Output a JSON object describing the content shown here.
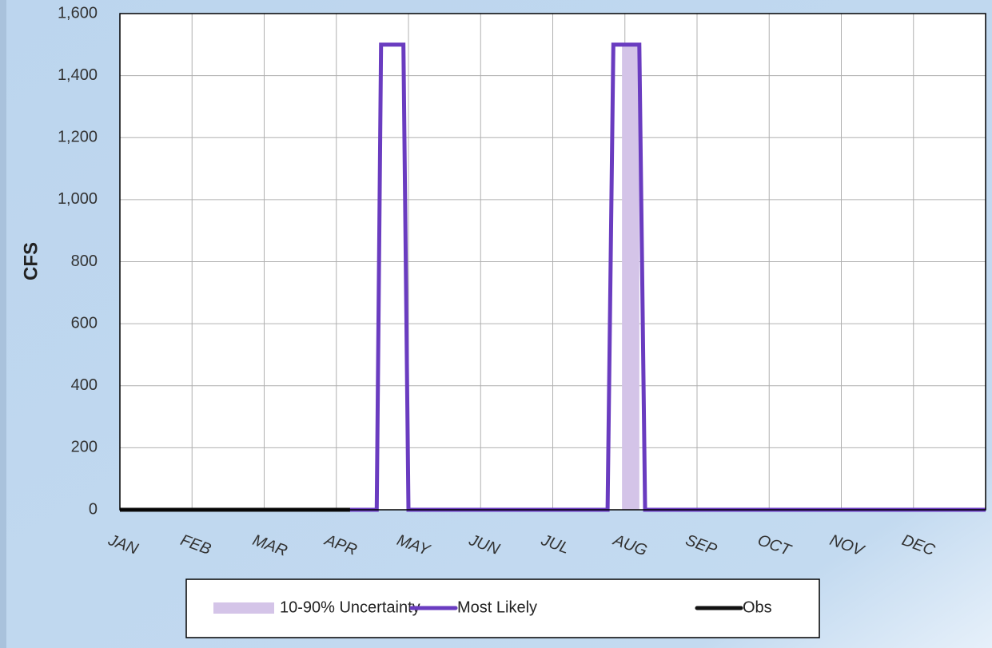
{
  "chart_data": {
    "type": "line",
    "y_label": "CFS",
    "xlim": [
      0,
      12
    ],
    "xticks": [
      {
        "value": 0,
        "label": "JAN"
      },
      {
        "value": 1,
        "label": "FEB"
      },
      {
        "value": 2,
        "label": "MAR"
      },
      {
        "value": 3,
        "label": "APR"
      },
      {
        "value": 4,
        "label": "MAY"
      },
      {
        "value": 5,
        "label": "JUN"
      },
      {
        "value": 6,
        "label": "JUL"
      },
      {
        "value": 7,
        "label": "AUG"
      },
      {
        "value": 8,
        "label": "SEP"
      },
      {
        "value": 9,
        "label": "OCT"
      },
      {
        "value": 10,
        "label": "NOV"
      },
      {
        "value": 11,
        "label": "DEC"
      }
    ],
    "ylim": [
      0,
      1600
    ],
    "yticks": [
      0,
      200,
      400,
      600,
      800,
      {
        "value": 1000,
        "label": "1,000"
      },
      {
        "value": 1200,
        "label": "1,200"
      },
      {
        "value": 1400,
        "label": "1,400"
      },
      {
        "value": 1600,
        "label": "1,600"
      }
    ],
    "grid": true,
    "legend": "bottom",
    "series": [
      {
        "name": "10-90% Uncertainty",
        "kind": "band",
        "color": "#d4c4e8",
        "x": [
          6.96,
          7.2
        ],
        "values": [
          1500,
          1500
        ],
        "lower": [
          0,
          0
        ]
      },
      {
        "name": "Most Likely",
        "kind": "line",
        "color": "#6a3cc0",
        "x": [
          0,
          3.56,
          3.62,
          3.93,
          4.0,
          6.76,
          6.84,
          7.2,
          7.28,
          12
        ],
        "values": [
          0,
          0,
          1500,
          1500,
          0,
          0,
          1500,
          1500,
          0,
          0
        ]
      },
      {
        "name": "Obs",
        "kind": "line",
        "color": "#111111",
        "x": [
          0,
          3.19
        ],
        "values": [
          0,
          0
        ]
      }
    ]
  }
}
